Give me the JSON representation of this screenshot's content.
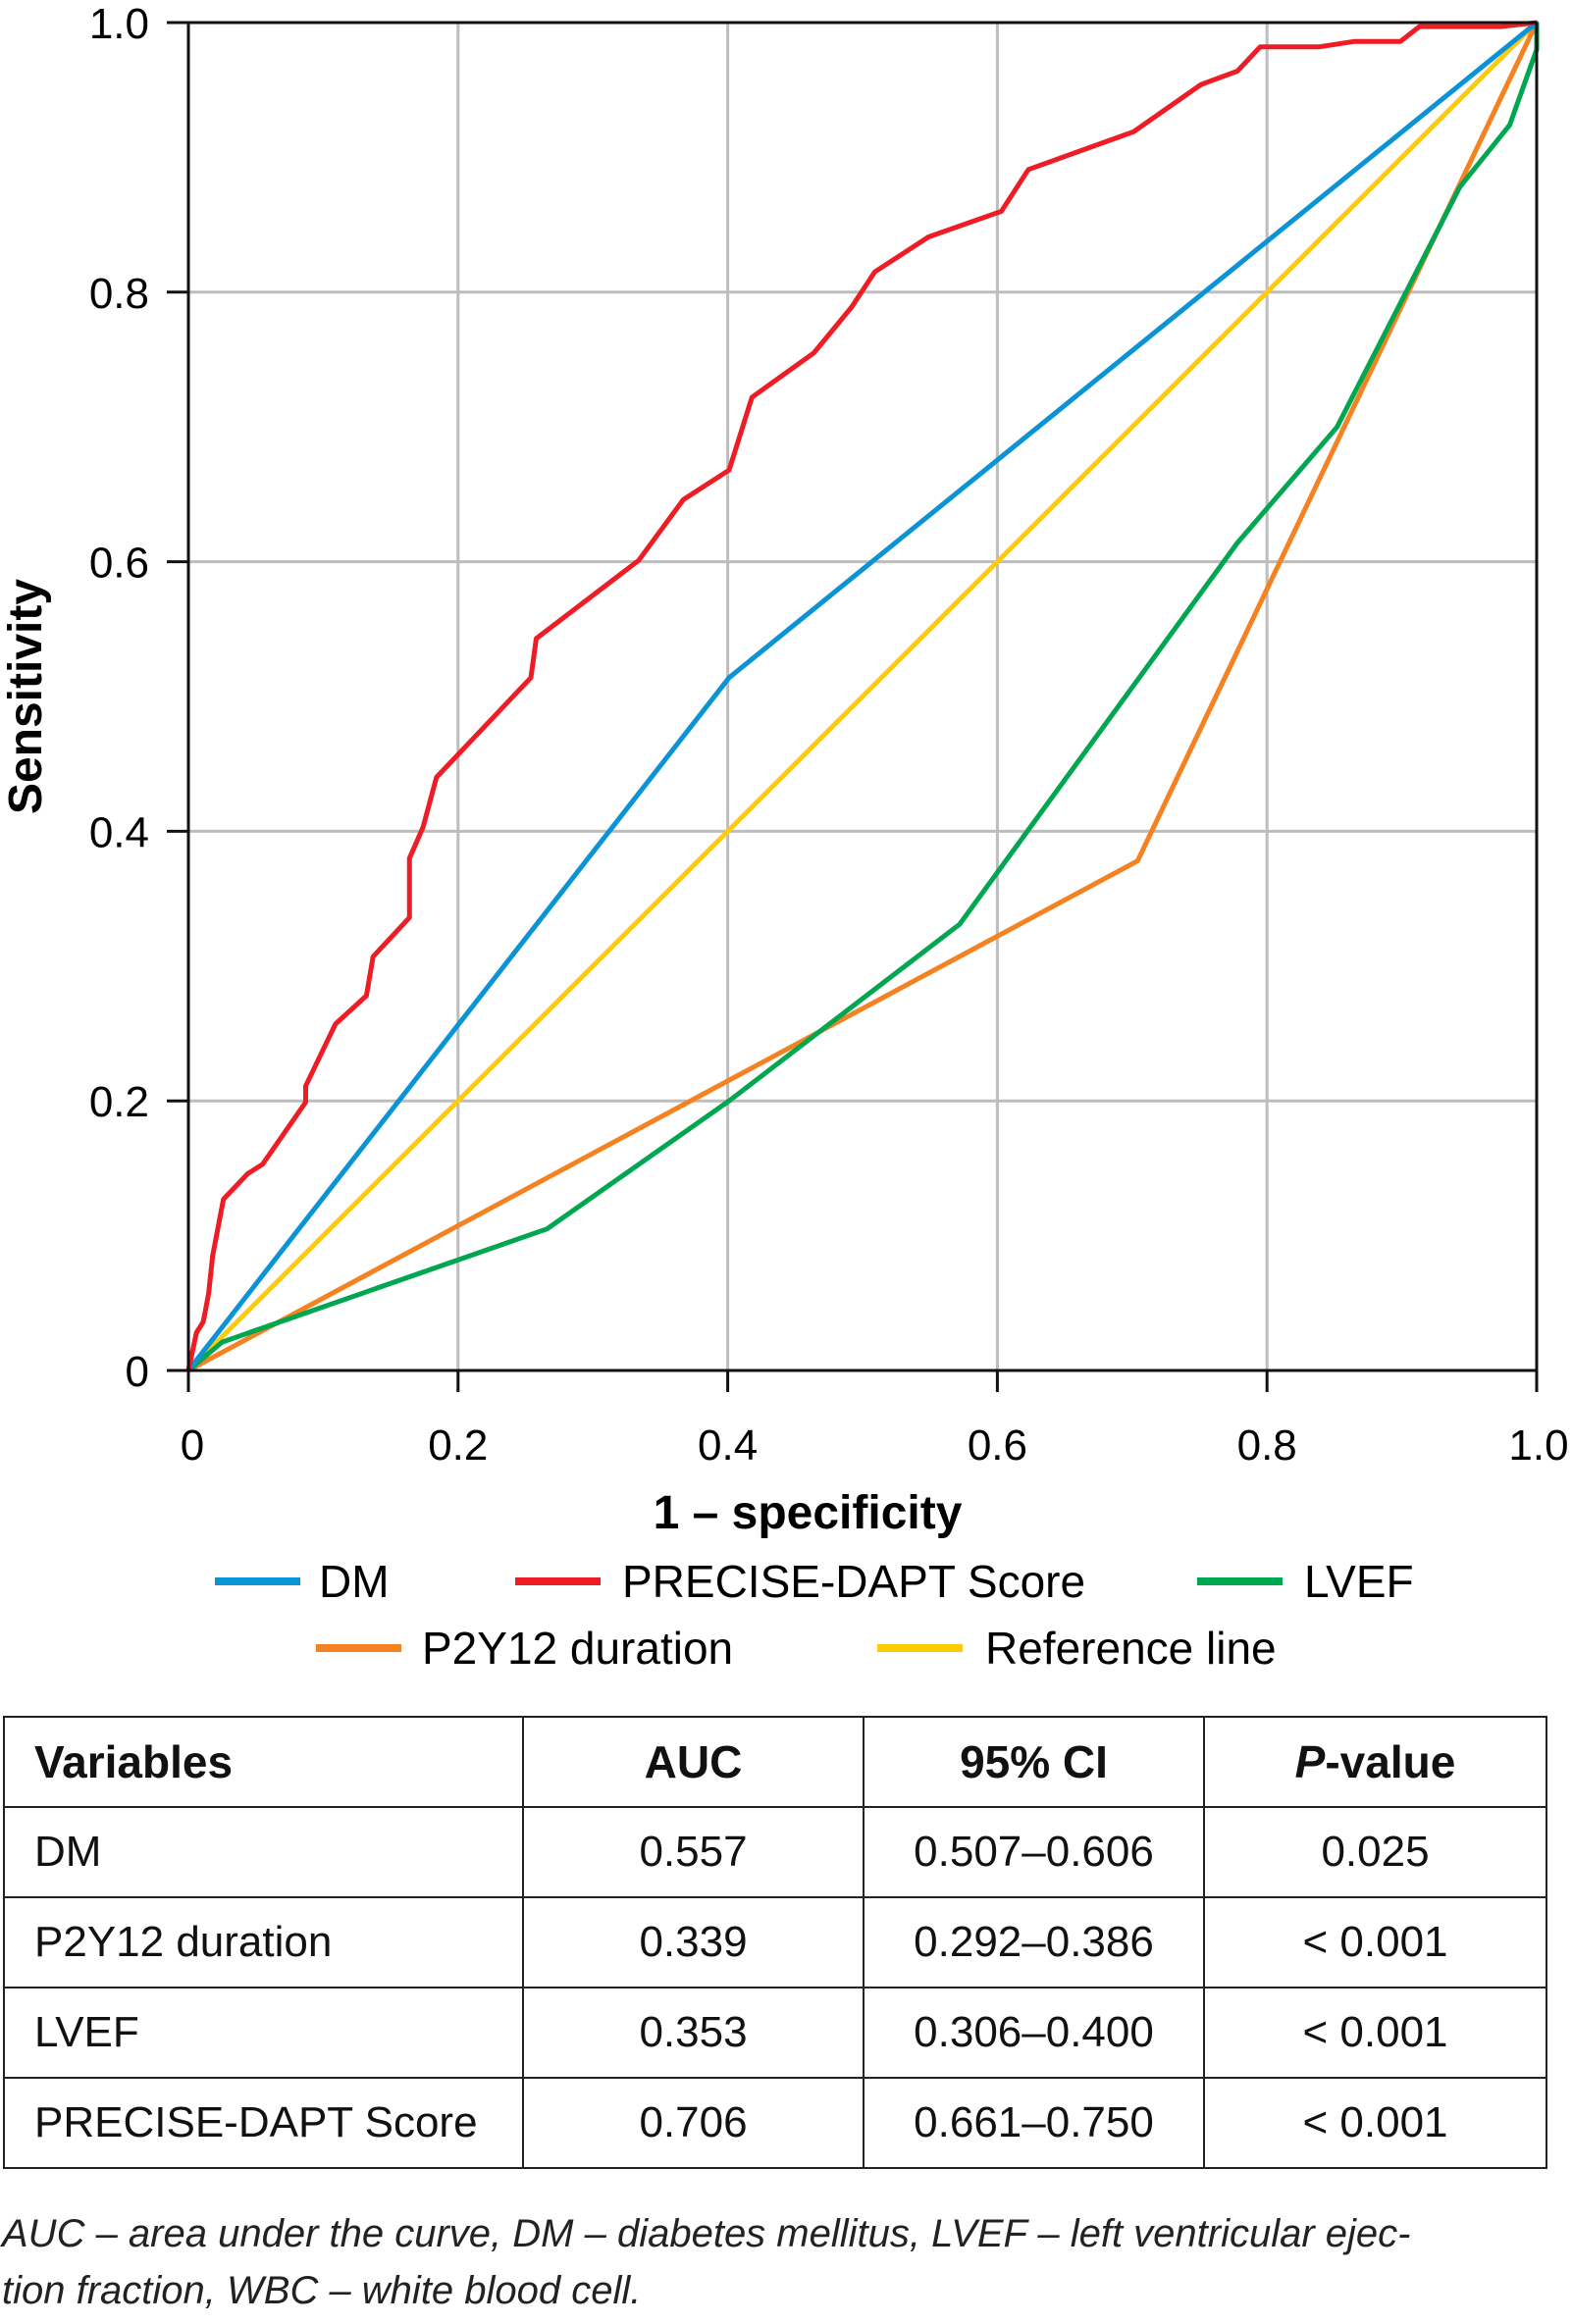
{
  "chart_data": {
    "type": "line",
    "title": "",
    "xlabel": "1 – specificity",
    "ylabel": "Sensitivity",
    "xlim": [
      0,
      1
    ],
    "ylim": [
      0,
      1
    ],
    "xticks": [
      "0",
      "0.2",
      "0.4",
      "0.6",
      "0.8",
      "1.0"
    ],
    "yticks": [
      "0",
      "0.2",
      "0.4",
      "0.6",
      "0.8",
      "1.0"
    ],
    "grid": true,
    "legend_placement": "bottom",
    "series": [
      {
        "name": "DM",
        "color": "#0a94d6",
        "x": [
          0,
          0.401,
          1
        ],
        "y": [
          0,
          0.514,
          1
        ]
      },
      {
        "name": "PRECISE-DAPT Score",
        "color": "#ee1c25",
        "x": [
          0,
          0.006,
          0.011,
          0.015,
          0.018,
          0.026,
          0.044,
          0.055,
          0.087,
          0.087,
          0.109,
          0.132,
          0.137,
          0.164,
          0.164,
          0.174,
          0.184,
          0.254,
          0.258,
          0.334,
          0.367,
          0.401,
          0.418,
          0.464,
          0.492,
          0.509,
          0.549,
          0.603,
          0.623,
          0.701,
          0.751,
          0.778,
          0.795,
          0.839,
          0.865,
          0.899,
          0.913,
          0.973,
          1
        ],
        "y": [
          0,
          0.028,
          0.036,
          0.057,
          0.085,
          0.127,
          0.146,
          0.153,
          0.199,
          0.211,
          0.257,
          0.278,
          0.307,
          0.336,
          0.38,
          0.403,
          0.44,
          0.514,
          0.543,
          0.601,
          0.646,
          0.668,
          0.722,
          0.755,
          0.789,
          0.815,
          0.841,
          0.86,
          0.891,
          0.919,
          0.954,
          0.964,
          0.982,
          0.982,
          0.986,
          0.986,
          0.997,
          0.997,
          1
        ]
      },
      {
        "name": "LVEF",
        "color": "#00a650",
        "x": [
          0,
          0.025,
          0.266,
          0.401,
          0.572,
          0.778,
          0.852,
          0.943,
          0.98,
          1,
          1
        ],
        "y": [
          0,
          0.021,
          0.105,
          0.2,
          0.331,
          0.614,
          0.7,
          0.878,
          0.924,
          0.98,
          1
        ]
      },
      {
        "name": "P2Y12 duration",
        "color": "#f58220",
        "x": [
          0,
          0.704,
          1
        ],
        "y": [
          0,
          0.378,
          1
        ]
      },
      {
        "name": "Reference line",
        "color": "#ffcb05",
        "x": [
          0,
          1
        ],
        "y": [
          0,
          1
        ]
      }
    ]
  },
  "table": {
    "headers": [
      "Variables",
      "AUC",
      "95% CI",
      "P",
      "-value"
    ],
    "rows": [
      [
        "DM",
        "0.557",
        "0.507–0.606",
        "0.025"
      ],
      [
        "P2Y12 duration",
        "0.339",
        "0.292–0.386",
        "< 0.001"
      ],
      [
        "LVEF",
        "0.353",
        "0.306–0.400",
        "< 0.001"
      ],
      [
        "PRECISE-DAPT Score",
        "0.706",
        "0.661–0.750",
        "< 0.001"
      ]
    ]
  },
  "footnote": {
    "line1": "AUC – area under the curve, DM – diabetes mellitus, LVEF – left ventricular ejec-",
    "line2": "tion fraction, WBC – white blood cell."
  }
}
